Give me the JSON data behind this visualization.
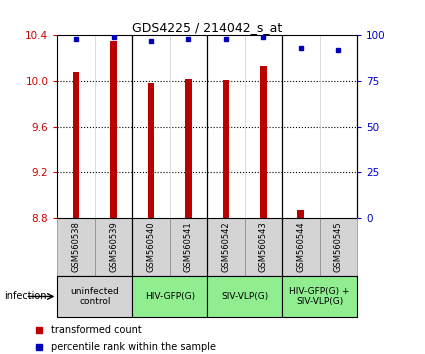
{
  "title": "GDS4225 / 214042_s_at",
  "samples": [
    "GSM560538",
    "GSM560539",
    "GSM560540",
    "GSM560541",
    "GSM560542",
    "GSM560543",
    "GSM560544",
    "GSM560545"
  ],
  "red_values": [
    10.08,
    10.35,
    9.98,
    10.02,
    10.01,
    10.13,
    8.87,
    8.8
  ],
  "blue_values": [
    98,
    99,
    97,
    98,
    98,
    99,
    93,
    92
  ],
  "ylim_left": [
    8.8,
    10.4
  ],
  "ylim_right": [
    0,
    100
  ],
  "yticks_left": [
    8.8,
    9.2,
    9.6,
    10.0,
    10.4
  ],
  "yticks_right": [
    0,
    25,
    50,
    75,
    100
  ],
  "grid_lines": [
    9.2,
    9.6,
    10.0
  ],
  "bar_color": "#bb0000",
  "dot_color": "#0000bb",
  "bar_width": 0.18,
  "group_boundaries": [
    2,
    4,
    6
  ],
  "groups": [
    {
      "label": "uninfected\ncontrol",
      "start": 0,
      "end": 2,
      "color": "#d4d4d4"
    },
    {
      "label": "HIV-GFP(G)",
      "start": 2,
      "end": 4,
      "color": "#90ee90"
    },
    {
      "label": "SIV-VLP(G)",
      "start": 4,
      "end": 6,
      "color": "#90ee90"
    },
    {
      "label": "HIV-GFP(G) +\nSIV-VLP(G)",
      "start": 6,
      "end": 8,
      "color": "#90ee90"
    }
  ],
  "legend_red": "transformed count",
  "legend_blue": "percentile rank within the sample",
  "infection_label": "infection",
  "left_color": "#cc0000",
  "right_color": "#0000cc",
  "label_fontsize": 7,
  "tick_fontsize": 7.5,
  "title_fontsize": 9
}
